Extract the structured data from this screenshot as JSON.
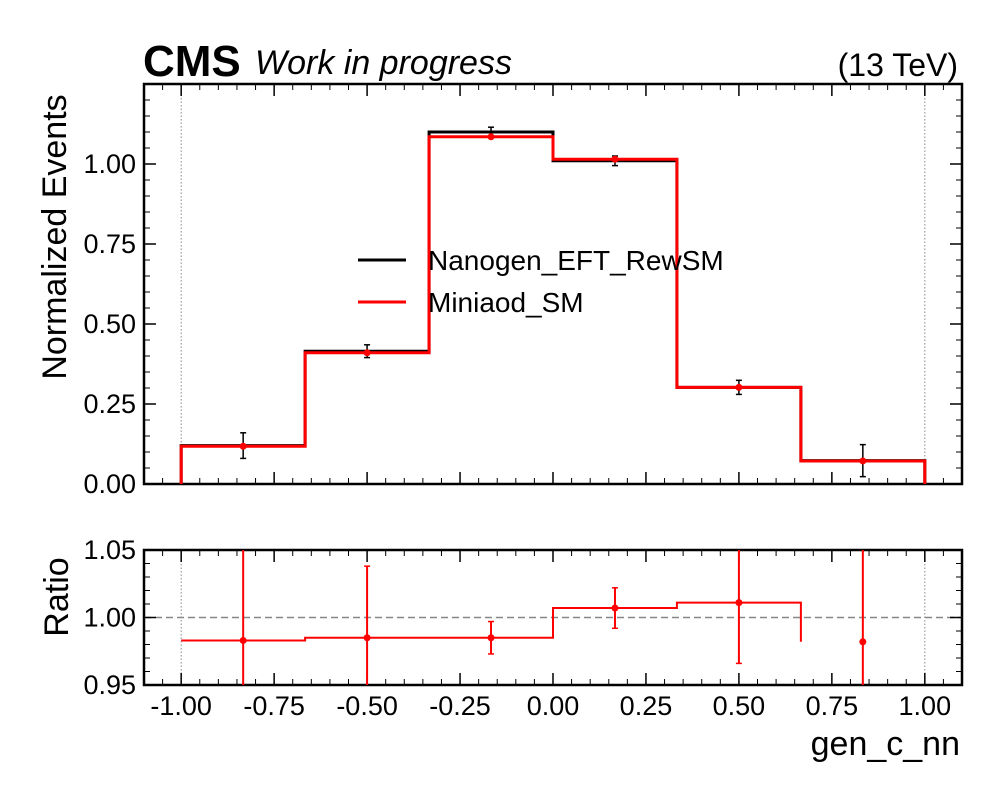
{
  "header": {
    "experiment": "CMS",
    "status": "Work in progress",
    "energy": "(13 TeV)"
  },
  "chart_data": [
    {
      "type": "line",
      "panel": "main",
      "xlabel": "",
      "ylabel": "Normalized Events",
      "xlim": [
        -1.1,
        1.1
      ],
      "ylim": [
        0.0,
        1.25
      ],
      "x_ticks": [
        -1.0,
        -0.75,
        -0.5,
        -0.25,
        0.0,
        0.25,
        0.5,
        0.75,
        1.0
      ],
      "y_ticks": [
        0.0,
        0.25,
        0.5,
        0.75,
        1.0
      ],
      "y_tick_labels": [
        "0.00",
        "0.25",
        "0.50",
        "0.75",
        "1.00"
      ],
      "bin_edges": [
        -1.0,
        -0.6667,
        -0.3333,
        0.0,
        0.3333,
        0.6667,
        1.0
      ],
      "bin_centers": [
        -0.8333,
        -0.5,
        -0.1667,
        0.1667,
        0.5,
        0.8333
      ],
      "reference_lines": [
        -1.0,
        1.0
      ],
      "legend_position": "center",
      "series": [
        {
          "name": "Nanogen_EFT_RewSM",
          "color": "#000000",
          "values": [
            0.12,
            0.415,
            1.1,
            1.01,
            0.302,
            0.073
          ],
          "errors": [
            0.04,
            0.02,
            0.015,
            0.015,
            0.022,
            0.05
          ]
        },
        {
          "name": "Miniaod_SM",
          "color": "#ff0000",
          "values": [
            0.118,
            0.41,
            1.085,
            1.015,
            0.302,
            0.072
          ],
          "errors": [
            0.005,
            0.005,
            0.005,
            0.005,
            0.005,
            0.005
          ]
        }
      ]
    },
    {
      "type": "line",
      "panel": "ratio",
      "xlabel": "gen_c_nn",
      "ylabel": "Ratio",
      "xlim": [
        -1.1,
        1.1
      ],
      "ylim": [
        0.95,
        1.05
      ],
      "x_ticks": [
        -1.0,
        -0.75,
        -0.5,
        -0.25,
        0.0,
        0.25,
        0.5,
        0.75,
        1.0
      ],
      "x_tick_labels": [
        "-1.00",
        "-0.75",
        "-0.50",
        "-0.25",
        "0.00",
        "0.25",
        "0.50",
        "0.75",
        "1.00"
      ],
      "y_ticks": [
        0.95,
        1.0,
        1.05
      ],
      "y_tick_labels": [
        "0.95",
        "1.00",
        "1.05"
      ],
      "reference_line": 1.0,
      "series": [
        {
          "name": "",
          "color": "#ff0000",
          "step_values": [
            0.983,
            0.985,
            0.985,
            1.007,
            1.011
          ],
          "points": [
            0.983,
            0.985,
            0.985,
            1.007,
            1.011,
            0.982
          ],
          "errors": [
            0.07,
            0.053,
            0.012,
            0.015,
            0.045,
            0.1
          ]
        }
      ]
    }
  ]
}
